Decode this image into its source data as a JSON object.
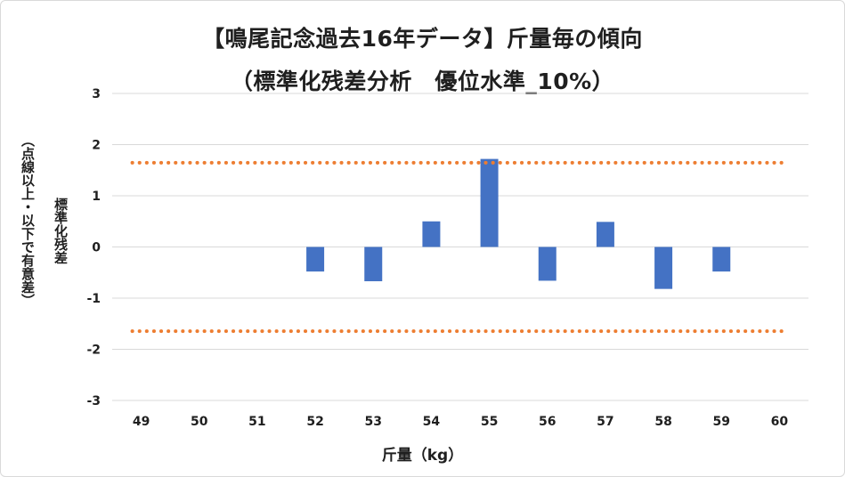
{
  "chart_data": {
    "type": "bar",
    "title": "【鳴尾記念過去16年データ】斤量毎の傾向",
    "subtitle": "（標準化残差分析　優位水準_10%）",
    "xlabel": "斤量（kg）",
    "ylabel": "標準化残差",
    "ylabel_note": "（点線以上・以下で有意差）",
    "categories": [
      "49",
      "50",
      "51",
      "52",
      "53",
      "54",
      "55",
      "56",
      "57",
      "58",
      "59",
      "60"
    ],
    "values": [
      null,
      null,
      null,
      -0.48,
      -0.67,
      0.5,
      1.72,
      -0.66,
      0.49,
      -0.82,
      -0.48,
      null
    ],
    "ylim": [
      -3,
      3
    ],
    "yticks": [
      "3",
      "2",
      "1",
      "0",
      "-1",
      "-2",
      "-3"
    ],
    "threshold_lines": [
      1.645,
      -1.645
    ],
    "grid": true,
    "colors": {
      "bar": "#4472c4",
      "threshold": "#ed7d31",
      "grid": "#d9d9d9"
    }
  }
}
